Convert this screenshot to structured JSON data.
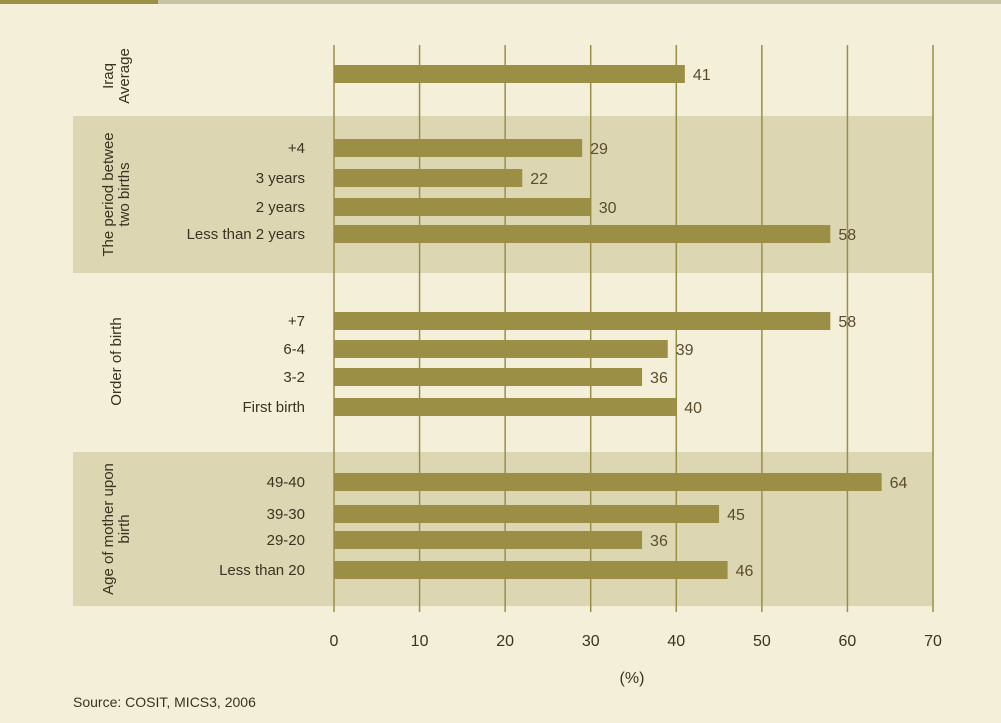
{
  "chart_data": {
    "type": "bar",
    "orientation": "horizontal",
    "xlabel": "(%)",
    "xlim": [
      0,
      70
    ],
    "xticks": [
      0,
      10,
      20,
      30,
      40,
      50,
      60,
      70
    ],
    "grid": true,
    "groups": [
      {
        "name": "Iraq Average",
        "shaded": false,
        "categories": [
          ""
        ],
        "values": [
          41
        ]
      },
      {
        "name": "The period betwee two births",
        "shaded": true,
        "categories": [
          "+4",
          "3 years",
          "2 years",
          "Less than 2 years"
        ],
        "values": [
          29,
          22,
          30,
          58
        ]
      },
      {
        "name": "Order of birth",
        "shaded": false,
        "categories": [
          "+7",
          "6-4",
          "3-2",
          "First birth"
        ],
        "values": [
          58,
          39,
          36,
          40
        ]
      },
      {
        "name": "Age of mother upon birth",
        "shaded": true,
        "categories": [
          "49-40",
          "39-30",
          "29-20",
          "Less than 20"
        ],
        "values": [
          64,
          45,
          36,
          46
        ]
      }
    ],
    "bar_color": "#9b8f45",
    "band_color": "#ddd6b3",
    "grid_color": "#9b8f45",
    "value_color": "#5a4c2e"
  },
  "source": "Source: COSIT, MICS3, 2006"
}
